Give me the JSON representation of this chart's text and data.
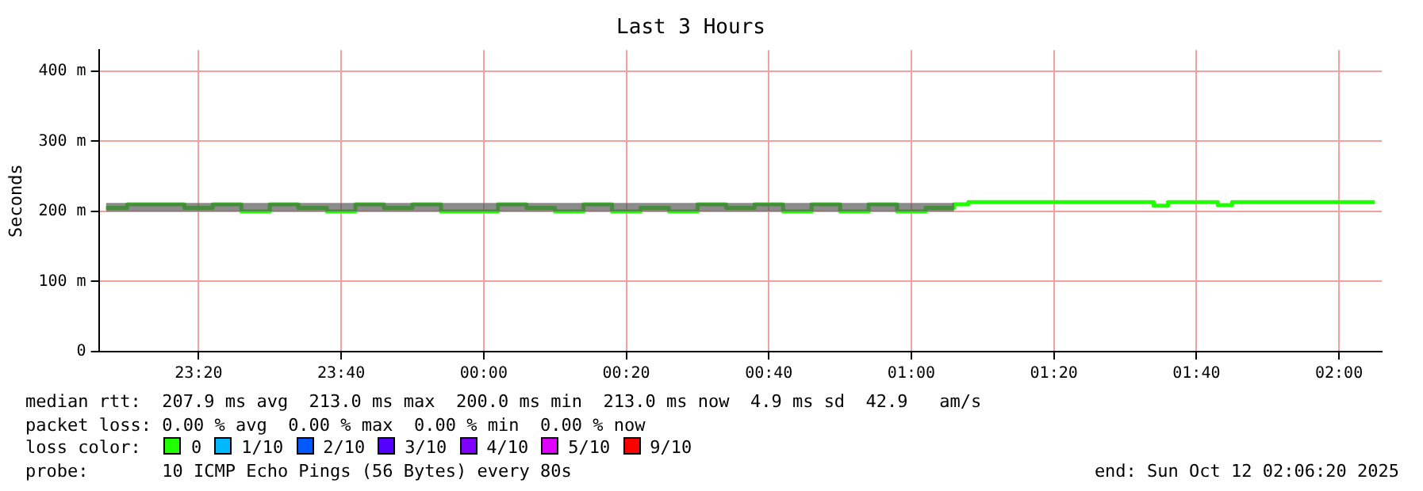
{
  "chart_data": {
    "type": "step",
    "title": "Last 3 Hours",
    "ylabel": "Seconds",
    "x": [
      "2025-10-11T23:07",
      "2025-10-11T23:10",
      "2025-10-11T23:14",
      "2025-10-11T23:18",
      "2025-10-11T23:22",
      "2025-10-11T23:26",
      "2025-10-11T23:30",
      "2025-10-11T23:34",
      "2025-10-11T23:38",
      "2025-10-11T23:42",
      "2025-10-11T23:46",
      "2025-10-11T23:50",
      "2025-10-11T23:54",
      "2025-10-11T23:58",
      "2025-10-12T00:02",
      "2025-10-12T00:06",
      "2025-10-12T00:10",
      "2025-10-12T00:14",
      "2025-10-12T00:18",
      "2025-10-12T00:22",
      "2025-10-12T00:26",
      "2025-10-12T00:30",
      "2025-10-12T00:34",
      "2025-10-12T00:38",
      "2025-10-12T00:42",
      "2025-10-12T00:46",
      "2025-10-12T00:50",
      "2025-10-12T00:54",
      "2025-10-12T00:58",
      "2025-10-12T01:02",
      "2025-10-12T01:06",
      "2025-10-12T01:08",
      "2025-10-12T01:18",
      "2025-10-12T01:30",
      "2025-10-12T01:34",
      "2025-10-12T01:36",
      "2025-10-12T01:43",
      "2025-10-12T01:45",
      "2025-10-12T01:54",
      "2025-10-12T02:00",
      "2025-10-12T02:05"
    ],
    "series": [
      {
        "name": "0",
        "color": "#20ff00",
        "values": [
          205,
          210,
          210,
          205,
          210,
          200,
          210,
          205,
          200,
          210,
          205,
          210,
          200,
          200,
          210,
          205,
          200,
          210,
          200,
          205,
          200,
          210,
          205,
          210,
          200,
          210,
          200,
          210,
          200,
          205,
          210,
          213,
          213,
          213,
          208,
          213,
          209,
          213,
          213,
          213,
          213
        ],
        "lower": [
          200,
          200,
          200,
          200,
          200,
          200,
          200,
          200,
          200,
          200,
          200,
          200,
          200,
          200,
          200,
          200,
          200,
          200,
          200,
          200,
          200,
          200,
          200,
          200,
          200,
          200,
          200,
          200,
          200,
          200,
          200,
          null,
          null,
          null,
          null,
          null,
          null,
          null,
          null,
          null,
          null
        ],
        "upper": [
          212,
          212,
          212,
          212,
          212,
          212,
          212,
          212,
          212,
          212,
          212,
          212,
          212,
          212,
          212,
          212,
          212,
          212,
          212,
          212,
          212,
          212,
          212,
          212,
          212,
          212,
          212,
          212,
          212,
          212,
          212,
          null,
          null,
          null,
          null,
          null,
          null,
          null,
          null,
          null,
          null
        ]
      },
      {
        "name": "1/10",
        "color": "#00b8ff",
        "values": [
          null,
          null,
          null,
          null,
          null,
          null,
          null,
          null,
          null,
          null,
          null,
          null,
          null,
          null,
          null,
          null,
          null,
          null,
          null,
          null,
          null,
          null,
          null,
          null,
          null,
          null,
          null,
          null,
          null,
          null,
          null,
          null,
          null,
          null,
          null,
          null,
          null,
          null,
          null,
          null,
          null
        ]
      },
      {
        "name": "2/10",
        "color": "#0059ff",
        "values": [
          null,
          null,
          null,
          null,
          null,
          null,
          null,
          null,
          null,
          null,
          null,
          null,
          null,
          null,
          null,
          null,
          null,
          null,
          null,
          null,
          null,
          null,
          null,
          null,
          null,
          null,
          null,
          null,
          null,
          null,
          null,
          null,
          null,
          null,
          null,
          null,
          null,
          null,
          null,
          null,
          null
        ]
      },
      {
        "name": "3/10",
        "color": "#5500ff",
        "values": [
          null,
          null,
          null,
          null,
          null,
          null,
          null,
          null,
          null,
          null,
          null,
          null,
          null,
          null,
          null,
          null,
          null,
          null,
          null,
          null,
          null,
          null,
          null,
          null,
          null,
          null,
          null,
          null,
          null,
          null,
          null,
          null,
          null,
          null,
          null,
          null,
          null,
          null,
          null,
          null,
          null
        ]
      },
      {
        "name": "4/10",
        "color": "#7e00ff",
        "values": [
          null,
          null,
          null,
          null,
          null,
          null,
          null,
          null,
          null,
          null,
          null,
          null,
          null,
          null,
          null,
          null,
          null,
          null,
          null,
          null,
          null,
          null,
          null,
          null,
          null,
          null,
          null,
          null,
          null,
          null,
          null,
          null,
          null,
          null,
          null,
          null,
          null,
          null,
          null,
          null,
          null
        ]
      },
      {
        "name": "5/10",
        "color": "#dd00ff",
        "values": [
          null,
          null,
          null,
          null,
          null,
          null,
          null,
          null,
          null,
          null,
          null,
          null,
          null,
          null,
          null,
          null,
          null,
          null,
          null,
          null,
          null,
          null,
          null,
          null,
          null,
          null,
          null,
          null,
          null,
          null,
          null,
          null,
          null,
          null,
          null,
          null,
          null,
          null,
          null,
          null,
          null
        ]
      },
      {
        "name": "9/10",
        "color": "#ff0000",
        "values": [
          null,
          null,
          null,
          null,
          null,
          null,
          null,
          null,
          null,
          null,
          null,
          null,
          null,
          null,
          null,
          null,
          null,
          null,
          null,
          null,
          null,
          null,
          null,
          null,
          null,
          null,
          null,
          null,
          null,
          null,
          null,
          null,
          null,
          null,
          null,
          null,
          null,
          null,
          null,
          null,
          null
        ]
      }
    ],
    "xlim": [
      "2025-10-11T23:06",
      "2025-10-12T02:06"
    ],
    "xticks": [
      {
        "value": "2025-10-11T23:20",
        "label": "23:20"
      },
      {
        "value": "2025-10-11T23:40",
        "label": "23:40"
      },
      {
        "value": "2025-10-12T00:00",
        "label": "00:00"
      },
      {
        "value": "2025-10-12T00:20",
        "label": "00:20"
      },
      {
        "value": "2025-10-12T00:40",
        "label": "00:40"
      },
      {
        "value": "2025-10-12T01:00",
        "label": "01:00"
      },
      {
        "value": "2025-10-12T01:20",
        "label": "01:20"
      },
      {
        "value": "2025-10-12T01:40",
        "label": "01:40"
      },
      {
        "value": "2025-10-12T02:00",
        "label": "02:00"
      }
    ],
    "ylim": [
      0,
      430
    ],
    "yticks": [
      0,
      {
        "value": 100,
        "label": "100 m"
      },
      {
        "value": 200,
        "label": "200 m"
      },
      {
        "value": 300,
        "label": "300 m"
      },
      {
        "value": 400,
        "label": "400 m"
      }
    ],
    "grid": true,
    "legend": "bottom",
    "legend_title": "loss color:",
    "annotations": [
      "median rtt:  207.9 ms avg  213.0 ms max  200.0 ms min  213.0 ms now  4.9 ms sd  42.9   am/s",
      "packet loss: 0.00 % avg  0.00 % max  0.00 % min  0.00 % now",
      "probe:       10 ICMP Echo Pings (56 Bytes) every 80s",
      "end: Sun Oct 12 02:06:20 2025"
    ]
  }
}
